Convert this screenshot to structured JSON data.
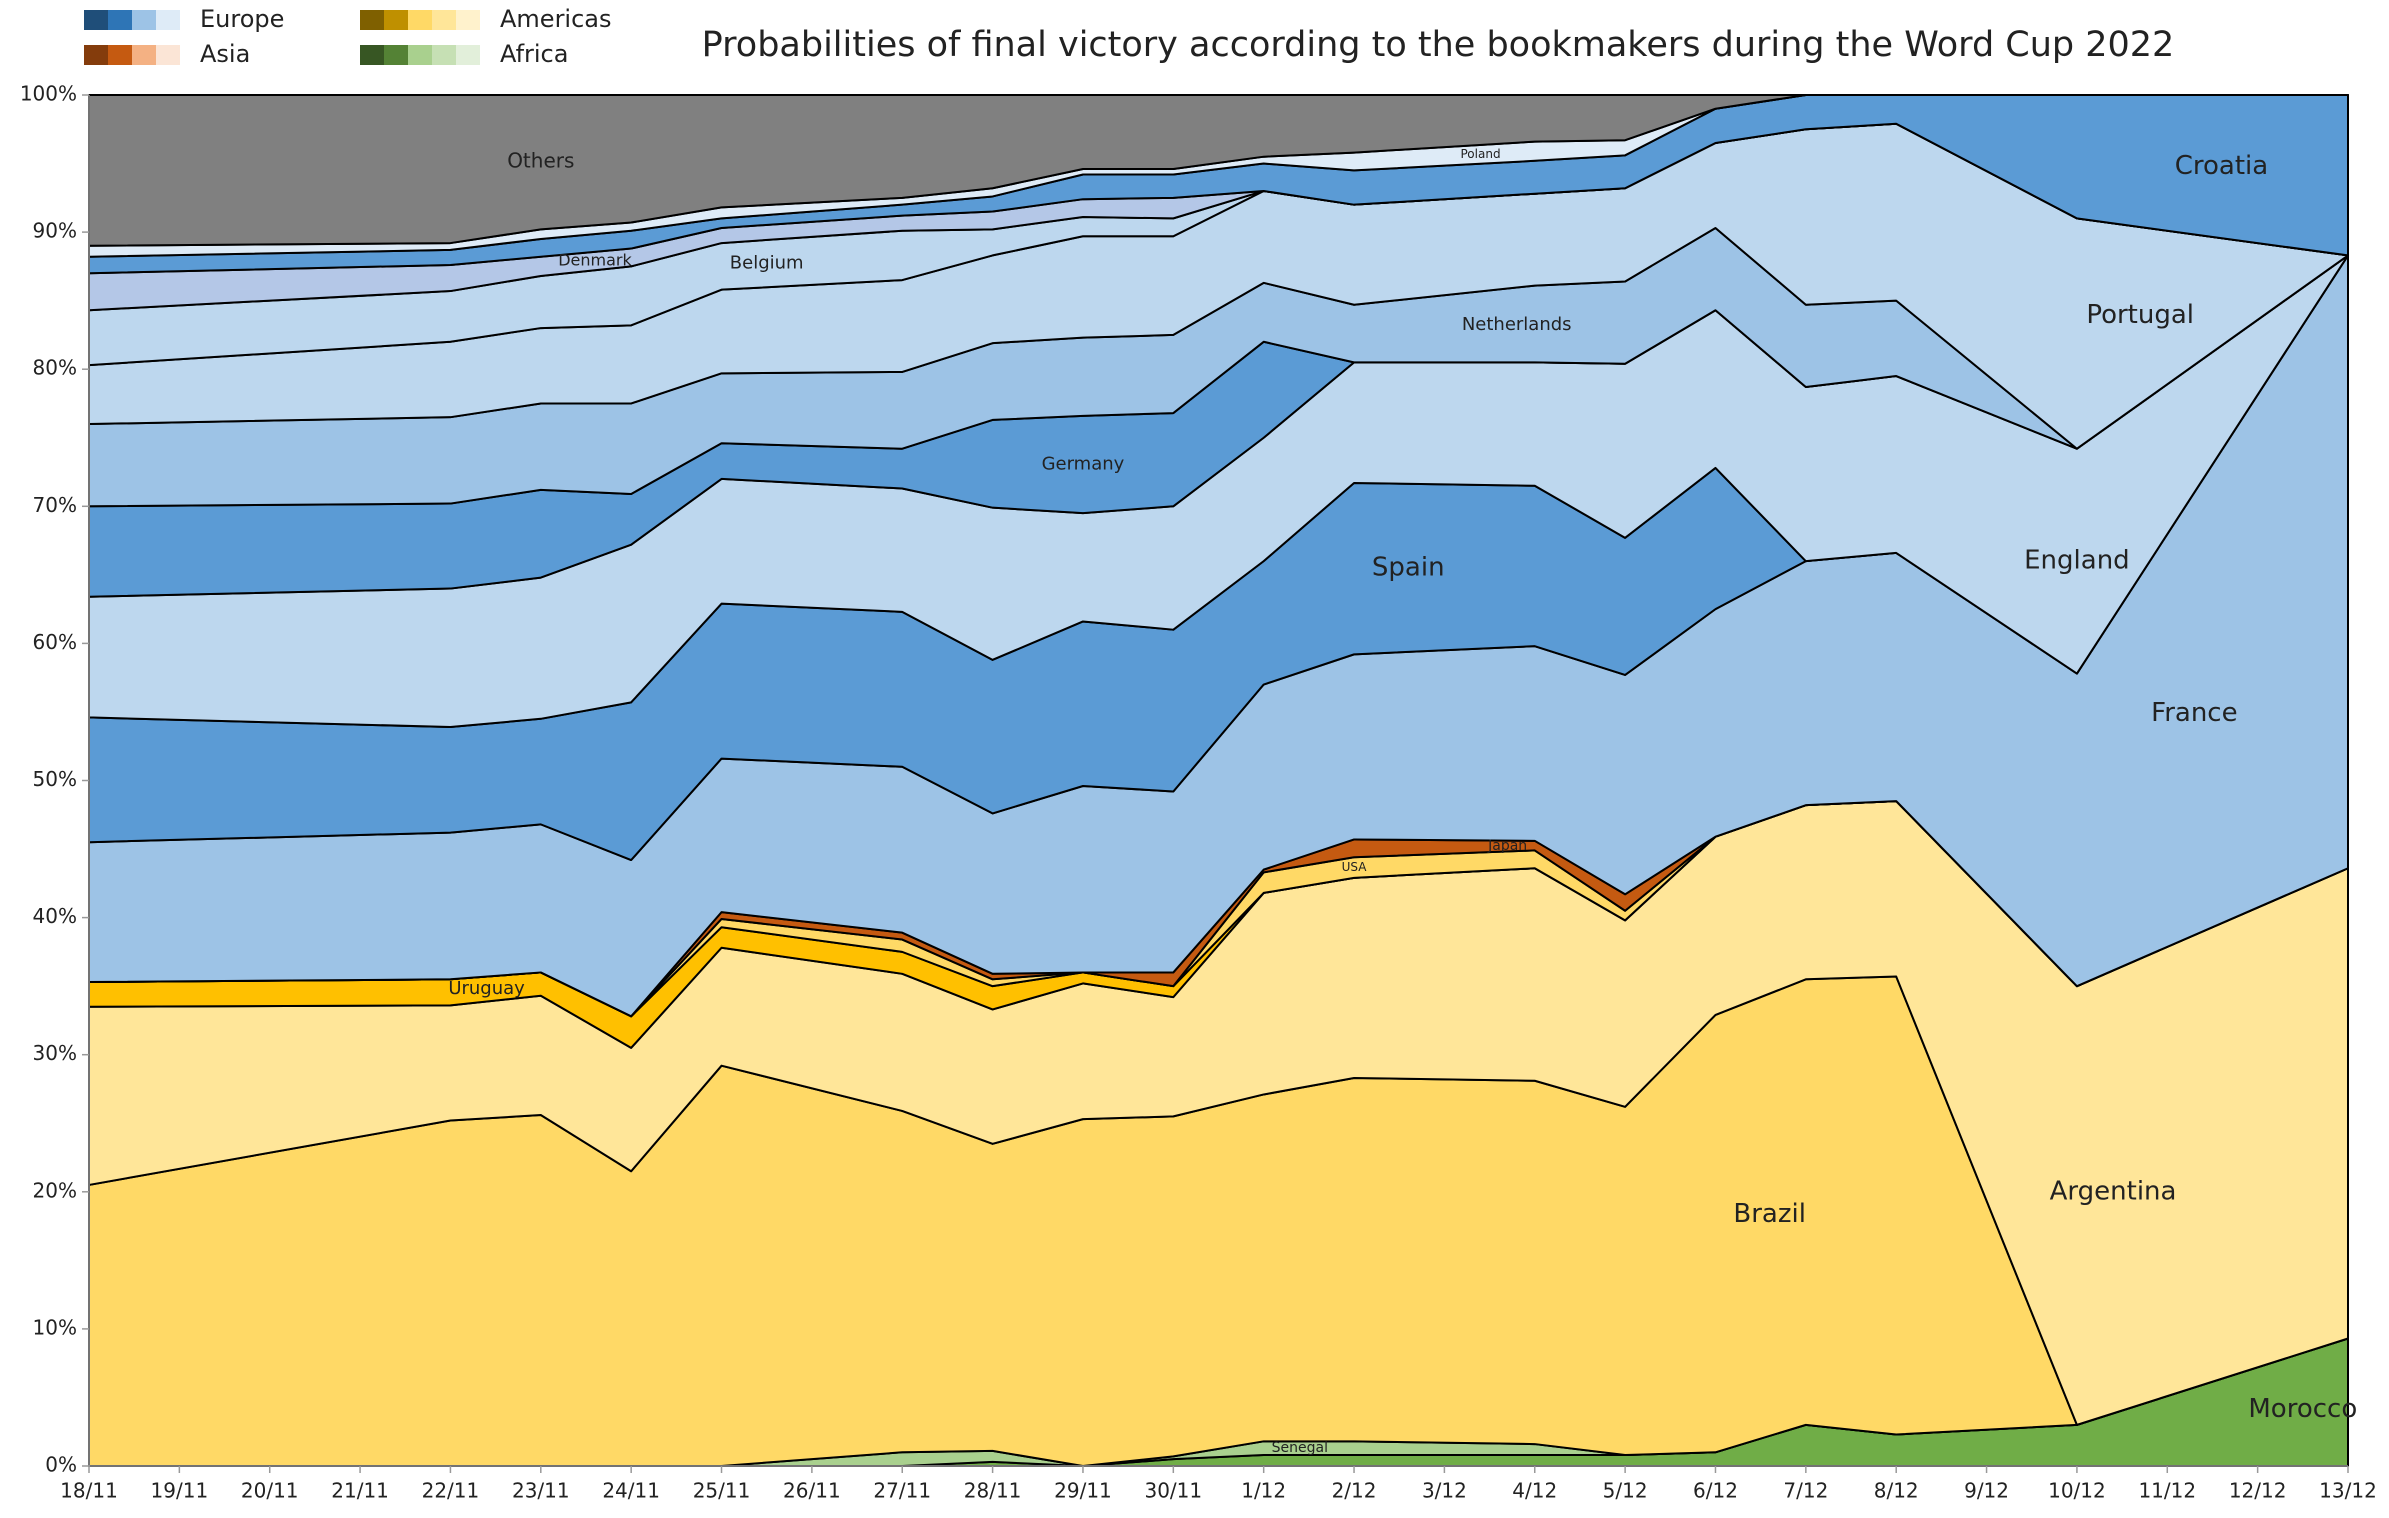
{
  "chart_data": {
    "type": "stacked_area",
    "title": "Probabilities of final victory according to the bookmakers during the Word Cup 2022",
    "xlim": [
      0,
      25
    ],
    "xticks": [
      {
        "value": 0,
        "label": "18/11"
      },
      {
        "value": 1,
        "label": "19/11"
      },
      {
        "value": 2,
        "label": "20/11"
      },
      {
        "value": 3,
        "label": "21/11"
      },
      {
        "value": 4,
        "label": "22/11"
      },
      {
        "value": 5,
        "label": "23/11"
      },
      {
        "value": 6,
        "label": "24/11"
      },
      {
        "value": 7,
        "label": "25/11"
      },
      {
        "value": 8,
        "label": "26/11"
      },
      {
        "value": 9,
        "label": "27/11"
      },
      {
        "value": 10,
        "label": "28/11"
      },
      {
        "value": 11,
        "label": "29/11"
      },
      {
        "value": 12,
        "label": "30/11"
      },
      {
        "value": 13,
        "label": "1/12"
      },
      {
        "value": 14,
        "label": "2/12"
      },
      {
        "value": 15,
        "label": "3/12"
      },
      {
        "value": 16,
        "label": "4/12"
      },
      {
        "value": 17,
        "label": "5/12"
      },
      {
        "value": 18,
        "label": "6/12"
      },
      {
        "value": 19,
        "label": "7/12"
      },
      {
        "value": 20,
        "label": "8/12"
      },
      {
        "value": 21,
        "label": "9/12"
      },
      {
        "value": 22,
        "label": "10/12"
      },
      {
        "value": 23,
        "label": "11/12"
      },
      {
        "value": 24,
        "label": "12/12"
      },
      {
        "value": 25,
        "label": "13/12"
      }
    ],
    "ylim": [
      0,
      100
    ],
    "yticks": [
      {
        "value": 0,
        "label": "0%"
      },
      {
        "value": 10,
        "label": "10%"
      },
      {
        "value": 20,
        "label": "20%"
      },
      {
        "value": 30,
        "label": "30%"
      },
      {
        "value": 40,
        "label": "40%"
      },
      {
        "value": 50,
        "label": "50%"
      },
      {
        "value": 60,
        "label": "60%"
      },
      {
        "value": 70,
        "label": "70%"
      },
      {
        "value": 80,
        "label": "80%"
      },
      {
        "value": 90,
        "label": "90%"
      },
      {
        "value": 100,
        "label": "100%"
      }
    ],
    "x": [
      0,
      4,
      5,
      6,
      7,
      9,
      10,
      11,
      12,
      13,
      14,
      16,
      17,
      18,
      19,
      20,
      22,
      25
    ],
    "legend": [
      {
        "label": "Europe",
        "colors": [
          "#1f4e79",
          "#2e75b6",
          "#9dc3e6",
          "#deebf7"
        ]
      },
      {
        "label": "Asia",
        "colors": [
          "#843c0c",
          "#c55a11",
          "#f4b183",
          "#fbe5d6"
        ]
      },
      {
        "label": "Americas",
        "colors": [
          "#7f6000",
          "#bf9000",
          "#ffd966",
          "#ffe699",
          "#fff2cc"
        ]
      },
      {
        "label": "Africa",
        "colors": [
          "#375623",
          "#548235",
          "#a9d08e",
          "#c6e0b4",
          "#e2efda"
        ]
      }
    ],
    "series": [
      {
        "name": "Morocco",
        "color": "#70ad47",
        "values": [
          0,
          0,
          0,
          0,
          0,
          0,
          0.3,
          0,
          0.5,
          0.8,
          0.8,
          0.8,
          0.8,
          1,
          3,
          2.3,
          3,
          9.3
        ]
      },
      {
        "name": "Senegal",
        "color": "#a9d08e",
        "values": [
          0,
          0,
          0,
          0,
          0,
          1,
          0.8,
          0,
          0.2,
          1,
          1,
          0.8,
          0,
          0,
          0,
          0,
          0,
          0
        ]
      },
      {
        "name": "Brazil",
        "color": "#ffd966",
        "values": [
          20.5,
          25.2,
          25.6,
          21.5,
          29.2,
          24.9,
          22.4,
          25.3,
          24.8,
          25.3,
          26.5,
          26.5,
          25.4,
          31.9,
          32.5,
          33.4,
          0,
          0
        ]
      },
      {
        "name": "Argentina",
        "color": "#ffe699",
        "values": [
          13,
          8.4,
          8.7,
          9,
          8.6,
          10,
          9.8,
          9.9,
          8.7,
          14.7,
          14.6,
          15.5,
          13.6,
          13,
          12.7,
          12.8,
          32,
          34.3
        ]
      },
      {
        "name": "Uruguay",
        "color": "#ffc000",
        "values": [
          1.8,
          1.9,
          1.7,
          2.3,
          1.5,
          1.6,
          1.7,
          0.8,
          0.8,
          0,
          0,
          0,
          0,
          0,
          0,
          0,
          0,
          0
        ]
      },
      {
        "name": "USA",
        "color": "#ffd966",
        "values": [
          0,
          0,
          0,
          0,
          0.6,
          0.9,
          0.5,
          0,
          0,
          1.5,
          1.5,
          1.3,
          0.7,
          0,
          0,
          0,
          0,
          0
        ]
      },
      {
        "name": "Japan",
        "color": "#c55a11",
        "values": [
          0,
          0,
          0,
          0,
          0.5,
          0.5,
          0.4,
          0,
          1,
          0.2,
          1.3,
          0.7,
          1.2,
          0,
          0,
          0,
          0,
          0
        ]
      },
      {
        "name": "France",
        "color": "#9dc3e6",
        "values": [
          10.2,
          10.7,
          10.8,
          11.4,
          11.2,
          12.1,
          11.7,
          13.6,
          13.2,
          13.5,
          13.5,
          14.2,
          16,
          16.6,
          17.8,
          18.1,
          22.8,
          44.7
        ]
      },
      {
        "name": "Spain",
        "color": "#5b9bd5",
        "values": [
          9.1,
          7.7,
          7.7,
          11.5,
          11.3,
          11.3,
          11.2,
          12,
          11.8,
          9,
          12.5,
          11.7,
          10,
          10.3,
          0,
          0,
          0,
          0
        ]
      },
      {
        "name": "England",
        "color": "#bdd7ee",
        "values": [
          8.8,
          10.1,
          10.3,
          11.5,
          9.1,
          9,
          11.1,
          7.9,
          9,
          9,
          8.8,
          9,
          12.7,
          11.5,
          12.7,
          12.9,
          16.4,
          0
        ]
      },
      {
        "name": "Germany",
        "color": "#5b9bd5",
        "values": [
          6.6,
          6.2,
          6.4,
          3.7,
          2.6,
          2.9,
          6.4,
          7.1,
          6.8,
          7,
          0,
          0,
          0,
          0,
          0,
          0,
          0,
          0
        ]
      },
      {
        "name": "Netherlands",
        "color": "#9dc3e6",
        "values": [
          6,
          6.3,
          6.3,
          6.6,
          5.1,
          5.6,
          5.6,
          5.7,
          5.7,
          4.3,
          4.2,
          5.6,
          6,
          6,
          6,
          5.5,
          0,
          0
        ]
      },
      {
        "name": "Portugal",
        "color": "#bdd7ee",
        "values": [
          4.3,
          5.5,
          5.5,
          5.7,
          6.1,
          6.7,
          6.4,
          7.4,
          7.2,
          6.7,
          7.3,
          6.7,
          6.8,
          6.2,
          12.8,
          12.9,
          16.8,
          0
        ]
      },
      {
        "name": "Belgium",
        "color": "#bdd7ee",
        "values": [
          4,
          3.7,
          3.8,
          4.3,
          3.4,
          3.6,
          1.9,
          1.4,
          1.3,
          0,
          0,
          0,
          0,
          0,
          0,
          0,
          0,
          0
        ]
      },
      {
        "name": "Denmark",
        "color": "#b4c7e7",
        "values": [
          2.7,
          1.9,
          1.4,
          1.3,
          1.1,
          1.1,
          1.3,
          1.3,
          1.5,
          0,
          0,
          0,
          0,
          0,
          0,
          0,
          0,
          0
        ]
      },
      {
        "name": "Croatia",
        "color": "#5b9bd5",
        "values": [
          1.2,
          1.1,
          1.3,
          1.3,
          0.7,
          0.8,
          1.1,
          1.8,
          1.7,
          2,
          2.5,
          2.4,
          2.4,
          2.5,
          2.5,
          2.1,
          9,
          11.7
        ]
      },
      {
        "name": "Poland",
        "color": "#deebf7",
        "values": [
          0.8,
          0.5,
          0.7,
          0.6,
          0.8,
          0.5,
          0.6,
          0.4,
          0.4,
          0.5,
          1.3,
          1.4,
          1.1,
          0,
          0,
          0,
          0,
          0
        ]
      },
      {
        "name": "Others",
        "color": "#808080",
        "values": [
          11,
          10.8,
          9.8,
          9.3,
          8.2,
          7.5,
          6.8,
          5.4,
          5.4,
          4.5,
          4.2,
          3.4,
          3.3,
          1,
          0,
          0,
          0,
          0
        ]
      }
    ]
  }
}
